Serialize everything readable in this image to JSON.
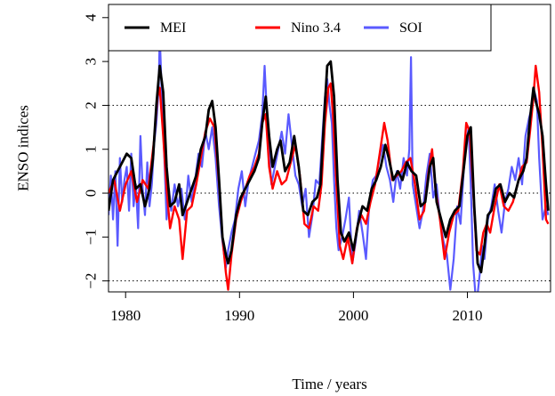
{
  "chart_data": {
    "type": "line",
    "title": "",
    "xlabel": "Time / years",
    "ylabel": "ENSO indices",
    "xlim": [
      1978.5,
      2017.3
    ],
    "ylim": [
      -2.25,
      4.3
    ],
    "xticks": [
      1980,
      1990,
      2000,
      2010
    ],
    "xtick_labels": [
      "1980",
      "1990",
      "2000",
      "2010"
    ],
    "yticks": [
      -2,
      -1,
      0,
      1,
      2,
      3,
      4
    ],
    "ytick_labels": [
      "−2",
      "−1",
      "0",
      "1",
      "2",
      "3",
      "4"
    ],
    "reference_lines": [
      -2,
      0,
      2
    ],
    "grid": false,
    "legend": {
      "position": "top-left",
      "entries": [
        "MEI",
        "Nino 3.4",
        "SOI"
      ]
    },
    "series": [
      {
        "name": "SOI",
        "color": "#5a5aff",
        "x": [
          1978.5,
          1978.7,
          1978.9,
          1979.1,
          1979.3,
          1979.5,
          1979.7,
          1979.9,
          1980.1,
          1980.3,
          1980.5,
          1980.7,
          1980.9,
          1981.1,
          1981.3,
          1981.5,
          1981.7,
          1981.9,
          1982.1,
          1982.3,
          1982.5,
          1982.7,
          1982.9,
          1983.0,
          1983.2,
          1983.4,
          1983.6,
          1983.8,
          1984.0,
          1984.3,
          1984.6,
          1984.9,
          1985.2,
          1985.5,
          1985.8,
          1986.1,
          1986.4,
          1986.7,
          1987.0,
          1987.3,
          1987.6,
          1987.9,
          1988.2,
          1988.5,
          1988.8,
          1989.0,
          1989.3,
          1989.6,
          1989.9,
          1990.2,
          1990.5,
          1990.8,
          1991.1,
          1991.4,
          1991.7,
          1992.0,
          1992.2,
          1992.5,
          1992.8,
          1993.1,
          1993.4,
          1993.7,
          1994.0,
          1994.3,
          1994.6,
          1994.9,
          1995.2,
          1995.5,
          1995.8,
          1996.1,
          1996.4,
          1996.7,
          1997.0,
          1997.3,
          1997.5,
          1997.7,
          1997.9,
          1998.1,
          1998.3,
          1998.5,
          1998.7,
          1999.0,
          1999.3,
          1999.6,
          1999.9,
          2000.2,
          2000.5,
          2000.8,
          2001.1,
          2001.4,
          2001.7,
          2002.0,
          2002.3,
          2002.6,
          2002.9,
          2003.2,
          2003.5,
          2003.8,
          2004.1,
          2004.4,
          2004.7,
          2004.9,
          2005.05,
          2005.2,
          2005.5,
          2005.8,
          2006.1,
          2006.4,
          2006.7,
          2007.0,
          2007.3,
          2007.6,
          2007.9,
          2008.2,
          2008.5,
          2008.8,
          2009.1,
          2009.4,
          2009.7,
          2009.9,
          2010.1,
          2010.3,
          2010.5,
          2010.7,
          2010.9,
          2011.1,
          2011.3,
          2011.5,
          2011.8,
          2012.1,
          2012.4,
          2012.7,
          2013.0,
          2013.3,
          2013.6,
          2013.9,
          2014.2,
          2014.5,
          2014.8,
          2015.1,
          2015.4,
          2015.7,
          2015.9,
          2016.1,
          2016.3,
          2016.6,
          2016.9,
          2017.1
        ],
        "y": [
          -0.5,
          0.4,
          -0.6,
          0.5,
          -1.2,
          0.8,
          -0.2,
          0.3,
          0.6,
          -0.4,
          0.9,
          -0.3,
          0.2,
          -0.8,
          1.3,
          0.1,
          -0.5,
          0.7,
          -0.3,
          0.2,
          1.1,
          1.6,
          2.4,
          3.6,
          2.1,
          0.8,
          -0.6,
          0.1,
          -0.4,
          0.2,
          -0.3,
          0.1,
          -0.6,
          0.4,
          -0.2,
          0.3,
          0.9,
          0.6,
          1.4,
          1.0,
          1.5,
          0.8,
          -0.3,
          -1.1,
          -1.7,
          -1.3,
          -0.9,
          -0.6,
          0.1,
          0.5,
          -0.3,
          0.3,
          0.6,
          0.9,
          1.2,
          1.8,
          2.9,
          1.3,
          0.2,
          0.6,
          1.0,
          1.4,
          0.9,
          1.8,
          1.1,
          0.4,
          0.2,
          -0.3,
          0.1,
          -1.0,
          -0.5,
          0.3,
          0.2,
          1.4,
          2.2,
          2.6,
          2.0,
          1.6,
          0.3,
          -0.8,
          -1.3,
          -1.0,
          -0.6,
          -0.1,
          -1.6,
          -1.1,
          -0.4,
          -0.9,
          -1.5,
          -0.2,
          0.3,
          0.4,
          0.8,
          1.1,
          0.6,
          0.3,
          -0.2,
          0.5,
          0.1,
          0.8,
          0.4,
          1.0,
          3.1,
          0.2,
          -0.3,
          -0.8,
          -0.4,
          0.4,
          0.9,
          -0.1,
          0.2,
          -0.6,
          -1.1,
          -1.4,
          -2.2,
          -1.5,
          -0.3,
          -0.7,
          0.6,
          1.1,
          1.5,
          0.2,
          -1.6,
          -2.3,
          -2.3,
          -1.8,
          -1.2,
          -1.5,
          -0.6,
          -0.3,
          0.2,
          -0.4,
          -0.9,
          -0.2,
          0.1,
          0.6,
          0.3,
          0.8,
          0.2,
          1.3,
          1.7,
          2.0,
          2.3,
          2.1,
          0.8,
          -0.6,
          -0.3,
          -0.5
        ]
      },
      {
        "name": "Nino 3.4",
        "color": "#ff0000",
        "x": [
          1978.5,
          1979.0,
          1979.5,
          1980.0,
          1980.5,
          1981.0,
          1981.5,
          1982.0,
          1982.5,
          1982.8,
          1983.0,
          1983.3,
          1983.6,
          1983.9,
          1984.3,
          1984.7,
          1985.0,
          1985.4,
          1985.8,
          1986.2,
          1986.6,
          1987.0,
          1987.4,
          1987.8,
          1988.2,
          1988.5,
          1988.8,
          1989.0,
          1989.3,
          1989.7,
          1990.1,
          1990.5,
          1990.9,
          1991.3,
          1991.7,
          1992.0,
          1992.3,
          1992.6,
          1992.9,
          1993.3,
          1993.7,
          1994.1,
          1994.5,
          1994.9,
          1995.3,
          1995.7,
          1996.1,
          1996.5,
          1996.9,
          1997.2,
          1997.5,
          1997.8,
          1998.0,
          1998.2,
          1998.5,
          1998.8,
          1999.1,
          1999.5,
          1999.9,
          2000.3,
          2000.7,
          2001.1,
          2001.5,
          2001.9,
          2002.3,
          2002.7,
          2003.0,
          2003.4,
          2003.8,
          2004.2,
          2004.6,
          2005.0,
          2005.4,
          2005.8,
          2006.2,
          2006.6,
          2006.9,
          2007.2,
          2007.6,
          2008.0,
          2008.4,
          2008.8,
          2009.2,
          2009.6,
          2009.9,
          2010.2,
          2010.5,
          2010.8,
          2011.1,
          2011.4,
          2011.7,
          2012.0,
          2012.4,
          2012.8,
          2013.2,
          2013.6,
          2014.0,
          2014.4,
          2014.8,
          2015.2,
          2015.5,
          2015.8,
          2016.0,
          2016.3,
          2016.6,
          2016.9,
          2017.1
        ],
        "y": [
          0.0,
          0.3,
          -0.4,
          0.2,
          0.5,
          -0.2,
          0.3,
          0.1,
          1.2,
          2.2,
          2.4,
          1.3,
          0.1,
          -0.8,
          -0.3,
          -0.6,
          -1.5,
          -0.4,
          -0.3,
          0.2,
          0.8,
          1.4,
          1.7,
          1.5,
          0.2,
          -1.0,
          -1.8,
          -2.2,
          -1.4,
          -0.6,
          -0.2,
          0.1,
          0.4,
          0.6,
          0.9,
          1.6,
          1.8,
          0.6,
          0.1,
          0.5,
          0.2,
          0.3,
          0.7,
          1.1,
          0.4,
          -0.7,
          -0.8,
          -0.3,
          -0.4,
          0.2,
          1.6,
          2.4,
          2.5,
          1.8,
          0.2,
          -1.2,
          -1.5,
          -1.0,
          -1.6,
          -0.8,
          -0.5,
          -0.7,
          -0.2,
          0.2,
          0.9,
          1.6,
          1.2,
          0.3,
          0.4,
          0.5,
          0.7,
          0.8,
          0.2,
          -0.6,
          -0.4,
          0.5,
          1.0,
          0.1,
          -0.6,
          -1.5,
          -0.9,
          -0.5,
          -0.4,
          0.5,
          1.6,
          1.4,
          0.1,
          -1.3,
          -1.4,
          -0.9,
          -0.7,
          -0.9,
          -0.3,
          0.2,
          -0.3,
          -0.4,
          -0.2,
          0.2,
          0.6,
          0.7,
          1.4,
          2.2,
          2.9,
          2.3,
          1.0,
          -0.6,
          -0.7
        ]
      },
      {
        "name": "MEI",
        "color": "#000000",
        "x": [
          1978.5,
          1978.9,
          1979.3,
          1979.7,
          1980.1,
          1980.5,
          1980.9,
          1981.3,
          1981.7,
          1982.1,
          1982.4,
          1982.7,
          1983.0,
          1983.3,
          1983.6,
          1983.9,
          1984.3,
          1984.7,
          1985.0,
          1985.4,
          1985.8,
          1986.2,
          1986.6,
          1987.0,
          1987.3,
          1987.6,
          1987.9,
          1988.2,
          1988.5,
          1988.8,
          1989.0,
          1989.3,
          1989.7,
          1990.1,
          1990.5,
          1990.9,
          1991.3,
          1991.7,
          1992.0,
          1992.3,
          1992.6,
          1992.9,
          1993.3,
          1993.6,
          1994.0,
          1994.4,
          1994.8,
          1995.2,
          1995.6,
          1996.0,
          1996.4,
          1996.8,
          1997.1,
          1997.4,
          1997.7,
          1998.0,
          1998.3,
          1998.6,
          1998.9,
          1999.2,
          1999.6,
          2000.0,
          2000.4,
          2000.8,
          2001.2,
          2001.6,
          2002.0,
          2002.4,
          2002.8,
          2003.1,
          2003.5,
          2003.9,
          2004.3,
          2004.7,
          2005.1,
          2005.5,
          2005.9,
          2006.3,
          2006.7,
          2007.0,
          2007.3,
          2007.7,
          2008.1,
          2008.5,
          2008.9,
          2009.3,
          2009.7,
          2010.0,
          2010.3,
          2010.6,
          2010.9,
          2011.2,
          2011.5,
          2011.8,
          2012.1,
          2012.5,
          2012.9,
          2013.3,
          2013.7,
          2014.1,
          2014.5,
          2014.9,
          2015.2,
          2015.5,
          2015.8,
          2016.0,
          2016.3,
          2016.6,
          2016.9,
          2017.1
        ],
        "y": [
          -0.4,
          0.3,
          0.5,
          0.7,
          0.9,
          0.8,
          0.1,
          0.2,
          -0.3,
          0.1,
          0.8,
          2.0,
          2.9,
          2.3,
          0.6,
          -0.3,
          -0.2,
          0.2,
          -0.5,
          -0.2,
          0.1,
          0.4,
          1.0,
          1.3,
          1.9,
          2.1,
          1.5,
          0.3,
          -1.0,
          -1.4,
          -1.6,
          -1.3,
          -0.5,
          -0.1,
          0.1,
          0.3,
          0.5,
          0.8,
          1.6,
          2.2,
          1.3,
          0.6,
          1.0,
          1.2,
          0.5,
          0.7,
          1.3,
          0.6,
          -0.4,
          -0.5,
          -0.2,
          -0.1,
          0.2,
          1.6,
          2.9,
          3.0,
          2.2,
          0.3,
          -0.9,
          -1.1,
          -0.9,
          -1.3,
          -0.7,
          -0.3,
          -0.4,
          0.1,
          0.3,
          0.6,
          1.1,
          0.8,
          0.3,
          0.5,
          0.3,
          0.7,
          0.5,
          0.4,
          -0.3,
          -0.2,
          0.6,
          0.8,
          -0.2,
          -0.6,
          -1.0,
          -0.6,
          -0.4,
          -0.3,
          0.6,
          1.3,
          1.5,
          -0.3,
          -1.6,
          -1.8,
          -1.2,
          -0.5,
          -0.4,
          0.1,
          0.2,
          -0.2,
          0.0,
          -0.1,
          0.3,
          0.5,
          0.8,
          1.7,
          2.4,
          2.1,
          1.8,
          1.3,
          0.2,
          -0.4
        ]
      }
    ]
  }
}
